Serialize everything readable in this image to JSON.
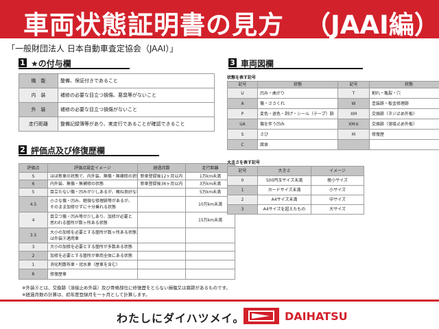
{
  "banner": {
    "title": "車両状態証明書の見方",
    "subtitle": "（JAAI編）",
    "color": "#d3212b"
  },
  "organization": "「一般財団法人 日本自動車査定協会（JAAI）」",
  "section1": {
    "number": "1",
    "title": "★の付与欄",
    "rows": [
      {
        "label": "機　能",
        "text": "整備、保証付きであること"
      },
      {
        "label": "内　装",
        "text": "補修の必要な目立つ損傷、悪臭等がないこと"
      },
      {
        "label": "外　装",
        "text": "補修の必要な目立つ損傷がないこと"
      },
      {
        "label": "走行距離",
        "text": "整備記録簿等があり、実走行であることが確認できること"
      }
    ]
  },
  "section2": {
    "number": "2",
    "title": "評価点及び修復歴欄",
    "headers": [
      "評価点",
      "評価点設定イメージ",
      "経過月数",
      "走行距離"
    ],
    "rows": [
      [
        "S",
        "ほぼ新車の状態で、内外装、無傷・無補修の状態",
        "新車登録後12ヶ月以内",
        "1万km未満"
      ],
      [
        "6",
        "内外装、無傷・無補修の状態",
        "新車登録後36ヶ月以内",
        "3万km未満"
      ],
      [
        "5",
        "目立たない傷・凹みが少しあるが、概ね良好な状態",
        "",
        "5万km未満"
      ],
      [
        "4.5",
        "小さな傷・凹み、軽微な修理跡等があるが、\nそのまま加修せずに十分乗れる状態",
        "",
        "10万km未満"
      ],
      [
        "4",
        "目立つ傷・凹み等が少しあり、加修が必要と\n思われる箇所が数ヶ所ある状態",
        "",
        "15万km未満"
      ],
      [
        "3.5",
        "大小の加修を必要とする箇所が数ヶ所ある状態又\nは外装Ⓧ適用車",
        "",
        ""
      ],
      [
        "3",
        "大小の加修を必要とする箇所が多数ある状態",
        "",
        ""
      ],
      [
        "2",
        "加修を必要とする箇所が車両全体にある状態",
        "",
        ""
      ],
      [
        "1",
        "消化剤散布車・冠水車（歴車を含む）",
        "",
        ""
      ],
      [
        "R",
        "修復歴車",
        "",
        ""
      ]
    ]
  },
  "section3": {
    "number": "3",
    "title": "車両図欄",
    "condition": {
      "title": "状態を表す記号",
      "headers": [
        "記号",
        "状態",
        "記号",
        "状態"
      ],
      "rows": [
        [
          "U",
          "凹み・曲がり",
          "T",
          "割れ・亀裂・穴"
        ],
        [
          "A",
          "傷・ささくれ",
          "W",
          "塗装跡・板金修理跡"
        ],
        [
          "P",
          "変色・退色・剥げ・シール（テープ）跡",
          "XM",
          "交換跡（ネジ止め外板）"
        ],
        [
          "UA",
          "傷を伴う凹み",
          "XM②",
          "交換跡（溶接止め外板）"
        ],
        [
          "S",
          "さび",
          "M",
          "修復歴"
        ],
        [
          "C",
          "腐食",
          "",
          ""
        ]
      ]
    },
    "size": {
      "title": "大きさを表す記号",
      "headers": [
        "記号",
        "大きさ",
        "イメージ"
      ],
      "rows": [
        [
          "0",
          "500円玉サイズ未満",
          "極小サイズ"
        ],
        [
          "1",
          "カードサイズ未満",
          "小サイズ"
        ],
        [
          "2",
          "A4サイズ未満",
          "中サイズ"
        ],
        [
          "3",
          "A4サイズを超えたもの",
          "大サイズ"
        ]
      ]
    }
  },
  "notes": [
    "※外装Ⓧとは、交換跡（溶接止め外装）及び骨格部位に修復歴をとらない損傷又は腐跡があるものです。",
    "※経過月数の計算は、初年度登録月を一ヶ月として計算します。"
  ],
  "footer": {
    "slogan": "わたしにダイハツメイ。",
    "brand": "DAIHATSU",
    "brand_color": "#d3212b"
  }
}
